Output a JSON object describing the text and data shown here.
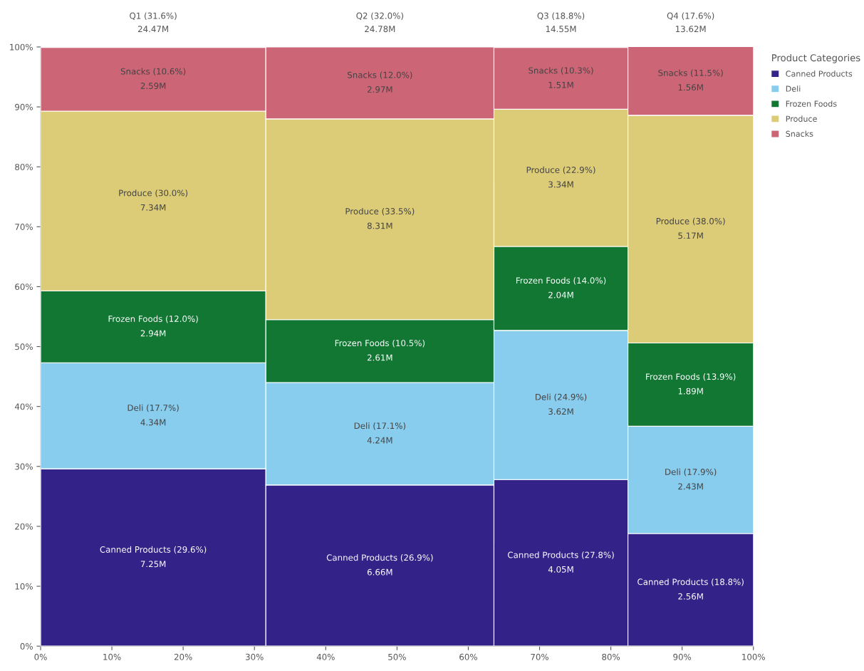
{
  "chart_data": {
    "type": "bar",
    "stacked": true,
    "annotations": [
      "Q1 (31.6%)\n24.47M",
      "Q2 (32.0%)\n24.78M",
      "Q3 (18.8%)\n14.55M",
      "Q4 (17.6%)\n13.62M"
    ],
    "x": [
      15.8,
      47.6,
      73.0,
      91.2
    ],
    "legend_title": "Product Categories",
    "legend": "top right",
    "grid": false,
    "xlim": [
      0,
      100
    ],
    "ylim": [
      0,
      100
    ],
    "xticks": [
      {
        "value": 0,
        "label": "0%"
      },
      {
        "value": 10,
        "label": "10%"
      },
      {
        "value": 20,
        "label": "20%"
      },
      {
        "value": 30,
        "label": "30%"
      },
      {
        "value": 40,
        "label": "40%"
      },
      {
        "value": 50,
        "label": "50%"
      },
      {
        "value": 60,
        "label": "60%"
      },
      {
        "value": 70,
        "label": "70%"
      },
      {
        "value": 80,
        "label": "80%"
      },
      {
        "value": 90,
        "label": "90%"
      },
      {
        "value": 100,
        "label": "100%"
      }
    ],
    "yticks": [
      {
        "value": 0,
        "label": "0%"
      },
      {
        "value": 10,
        "label": "10%"
      },
      {
        "value": 20,
        "label": "20%"
      },
      {
        "value": 30,
        "label": "30%"
      },
      {
        "value": 40,
        "label": "40%"
      },
      {
        "value": 50,
        "label": "50%"
      },
      {
        "value": 60,
        "label": "60%"
      },
      {
        "value": 70,
        "label": "70%"
      },
      {
        "value": 80,
        "label": "80%"
      },
      {
        "value": 90,
        "label": "90%"
      },
      {
        "value": 100,
        "label": "100%"
      }
    ],
    "series": [
      {
        "name": "Canned Products",
        "color": "#332288",
        "values": [
          29.6,
          26.9,
          27.8,
          18.8
        ],
        "value_labels": [
          "Canned Products (29.6%)\n7.25M",
          "Canned Products (26.9%)\n6.66M",
          "Canned Products (27.8%)\n4.05M",
          "Canned Products (18.8%)\n2.56M"
        ]
      },
      {
        "name": "Deli",
        "color": "#88ccee",
        "values": [
          17.7,
          17.1,
          24.9,
          17.9
        ],
        "value_labels": [
          "Deli (17.7%)\n4.34M",
          "Deli (17.1%)\n4.24M",
          "Deli (24.9%)\n3.62M",
          "Deli (17.9%)\n2.43M"
        ]
      },
      {
        "name": "Frozen Foods",
        "color": "#117733",
        "values": [
          12.0,
          10.5,
          14.0,
          13.9
        ],
        "value_labels": [
          "Frozen Foods (12.0%)\n2.94M",
          "Frozen Foods (10.5%)\n2.61M",
          "Frozen Foods (14.0%)\n2.04M",
          "Frozen Foods (13.9%)\n1.89M"
        ]
      },
      {
        "name": "Produce",
        "color": "#ddcc77",
        "values": [
          30.0,
          33.5,
          22.9,
          38.0
        ],
        "value_labels": [
          "Produce (30.0%)\n7.34M",
          "Produce (33.5%)\n8.31M",
          "Produce (22.9%)\n3.34M",
          "Produce (38.0%)\n5.17M"
        ]
      },
      {
        "name": "Snacks",
        "color": "#cc6677",
        "values": [
          10.6,
          12.0,
          10.3,
          11.5
        ],
        "value_labels": [
          "Snacks (10.6%)\n2.59M",
          "Snacks (12.0%)\n2.97M",
          "Snacks (10.3%)\n1.51M",
          "Snacks (11.5%)\n1.56M"
        ]
      }
    ]
  }
}
